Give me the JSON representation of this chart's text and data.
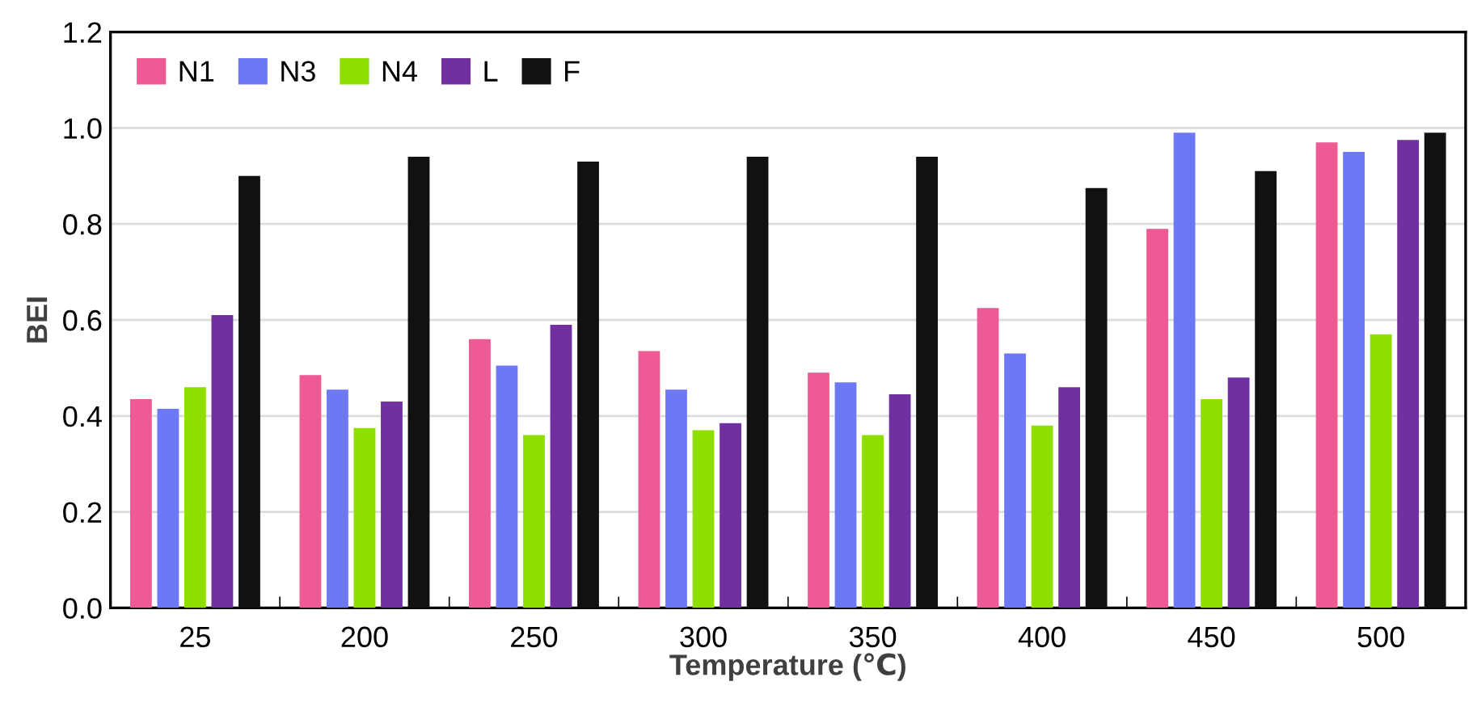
{
  "chart_data": {
    "type": "bar",
    "xlabel": "Temperature (℃)",
    "ylabel": "BEI",
    "categories": [
      "25",
      "200",
      "250",
      "300",
      "350",
      "400",
      "450",
      "500"
    ],
    "series": [
      {
        "name": "N1",
        "color": "#ee5a93",
        "values": [
          0.435,
          0.485,
          0.56,
          0.535,
          0.49,
          0.625,
          0.79,
          0.97
        ]
      },
      {
        "name": "N3",
        "color": "#6d78f5",
        "values": [
          0.415,
          0.455,
          0.505,
          0.455,
          0.47,
          0.53,
          0.99,
          0.95
        ]
      },
      {
        "name": "N4",
        "color": "#8ede00",
        "values": [
          0.46,
          0.375,
          0.36,
          0.37,
          0.36,
          0.38,
          0.435,
          0.57
        ]
      },
      {
        "name": "L",
        "color": "#7030a0",
        "values": [
          0.61,
          0.43,
          0.59,
          0.385,
          0.445,
          0.46,
          0.48,
          0.975
        ]
      },
      {
        "name": "F",
        "color": "#111111",
        "values": [
          0.9,
          0.94,
          0.93,
          0.94,
          0.94,
          0.875,
          0.91,
          0.99
        ]
      }
    ],
    "ylim": [
      0,
      1.2
    ],
    "yticks": [
      {
        "value": 0,
        "label": "0.0"
      },
      {
        "value": 0.2,
        "label": "0.2"
      },
      {
        "value": 0.4,
        "label": "0.4"
      },
      {
        "value": 0.6,
        "label": "0.6"
      },
      {
        "value": 0.8,
        "label": "0.8"
      },
      {
        "value": 1.0,
        "label": "1.0"
      },
      {
        "value": 1.2,
        "label": "1.2"
      }
    ],
    "grid": "y",
    "legend": "top left"
  }
}
